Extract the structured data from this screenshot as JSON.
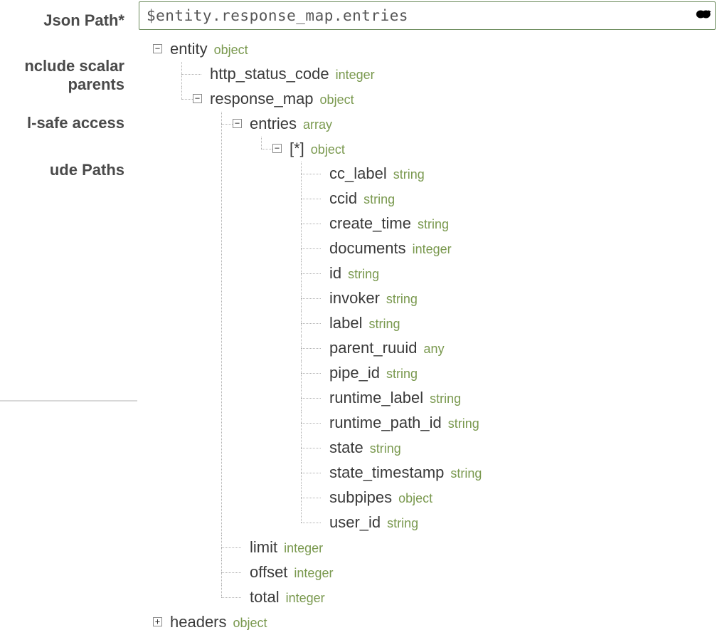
{
  "labels": {
    "jsonPath": "Json Path*",
    "includeScalarParents_line1": "nclude scalar",
    "includeScalarParents_line2": "parents",
    "nullSafe": "l-safe access",
    "excludePaths": "ude Paths"
  },
  "input": {
    "value": "$entity.response_map.entries"
  },
  "colors": {
    "typeColor": "#7a994f",
    "labelColor": "#3a3a3a",
    "inputBorder": "#6a8a5a",
    "treeLine": "#b0b0b0"
  },
  "toggle": {
    "minus": "−",
    "plus": "+"
  },
  "tree": [
    {
      "name": "entity",
      "type": "object",
      "expanded": true,
      "children": [
        {
          "name": "http_status_code",
          "type": "integer"
        },
        {
          "name": "response_map",
          "type": "object",
          "expanded": true,
          "children": [
            {
              "name": "entries",
              "type": "array",
              "expanded": true,
              "children": [
                {
                  "name": "[*]",
                  "type": "object",
                  "expanded": true,
                  "children": [
                    {
                      "name": "cc_label",
                      "type": "string"
                    },
                    {
                      "name": "ccid",
                      "type": "string"
                    },
                    {
                      "name": "create_time",
                      "type": "string"
                    },
                    {
                      "name": "documents",
                      "type": "integer"
                    },
                    {
                      "name": "id",
                      "type": "string"
                    },
                    {
                      "name": "invoker",
                      "type": "string"
                    },
                    {
                      "name": "label",
                      "type": "string"
                    },
                    {
                      "name": "parent_ruuid",
                      "type": "any"
                    },
                    {
                      "name": "pipe_id",
                      "type": "string"
                    },
                    {
                      "name": "runtime_label",
                      "type": "string"
                    },
                    {
                      "name": "runtime_path_id",
                      "type": "string"
                    },
                    {
                      "name": "state",
                      "type": "string"
                    },
                    {
                      "name": "state_timestamp",
                      "type": "string"
                    },
                    {
                      "name": "subpipes",
                      "type": "object"
                    },
                    {
                      "name": "user_id",
                      "type": "string"
                    }
                  ]
                }
              ]
            },
            {
              "name": "limit",
              "type": "integer"
            },
            {
              "name": "offset",
              "type": "integer"
            },
            {
              "name": "total",
              "type": "integer"
            }
          ]
        }
      ]
    },
    {
      "name": "headers",
      "type": "object",
      "expanded": false
    }
  ]
}
